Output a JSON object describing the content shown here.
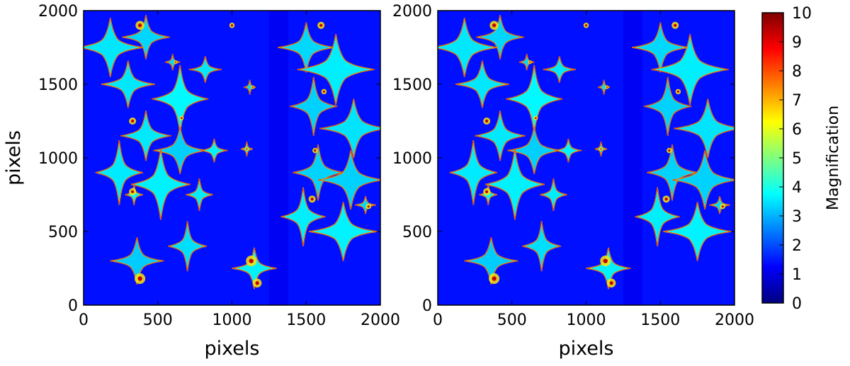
{
  "chart_data": {
    "type": "heatmap",
    "description_kind": "magnification map",
    "panels": [
      {
        "name": "left",
        "xlabel": "pixels",
        "ylabel": "pixels",
        "xlim": [
          0,
          2000
        ],
        "ylim": [
          0,
          2000
        ],
        "xticks": [
          "0",
          "500",
          "1000",
          "1500",
          "2000"
        ],
        "yticks": [
          "0",
          "500",
          "1000",
          "1500",
          "2000"
        ]
      },
      {
        "name": "right",
        "xlabel": "pixels",
        "ylabel": "",
        "xlim": [
          0,
          2000
        ],
        "ylim": [
          0,
          2000
        ],
        "xticks": [
          "0",
          "500",
          "1000",
          "1500",
          "2000"
        ],
        "yticks": [
          "0",
          "500",
          "1000",
          "1500",
          "2000"
        ]
      }
    ],
    "colorbar": {
      "label": "Magnification",
      "range": [
        0,
        10
      ],
      "ticks": [
        "0",
        "1",
        "2",
        "3",
        "4",
        "5",
        "6",
        "7",
        "8",
        "9",
        "10"
      ],
      "colormap": [
        "#00007f",
        "#0000ff",
        "#007fff",
        "#00ffff",
        "#7fff7f",
        "#ffff00",
        "#ff7f00",
        "#ff0000",
        "#7f0000"
      ]
    },
    "background_level": 1.4
  }
}
